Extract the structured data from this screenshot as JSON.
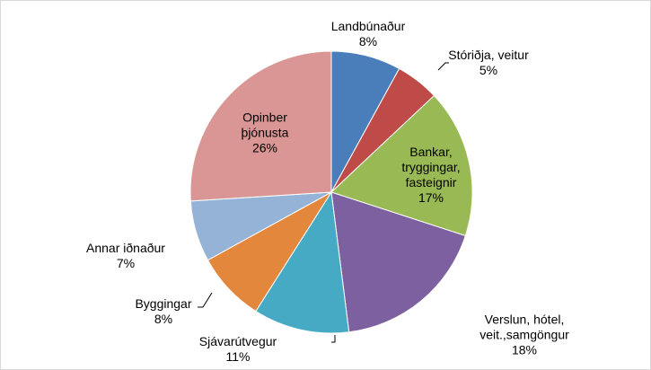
{
  "chart_data": {
    "type": "pie",
    "categories": [
      "Landbúnaður",
      "Stóriðja, veitur",
      "Bankar, tryggingar, fasteignir",
      "Verslun, hótel, veit.,samgöngur",
      "Sjávarútvegur",
      "Byggingar",
      "Annar iðnaður",
      "Opinber þjónusta"
    ],
    "values": [
      8,
      5,
      17,
      18,
      11,
      8,
      7,
      26
    ],
    "value_labels": [
      "8%",
      "5%",
      "17%",
      "18%",
      "11%",
      "8%",
      "7%",
      "26%"
    ],
    "colors": [
      "#4a7ebb",
      "#be4b48",
      "#98b954",
      "#7d60a0",
      "#46aac5",
      "#e3873c",
      "#95b3d7",
      "#d99694"
    ]
  }
}
